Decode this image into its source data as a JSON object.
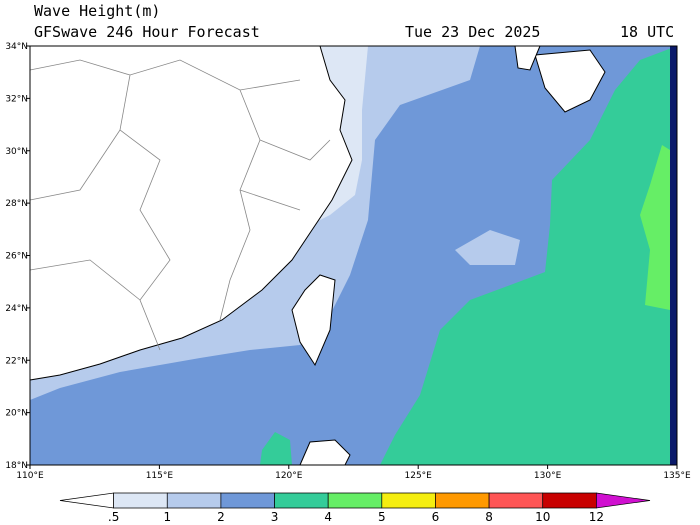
{
  "header": {
    "title": "Wave Height(m)",
    "subtitle": "GFSwave 246 Hour Forecast",
    "date": "Tue 23 Dec 2025",
    "time": "18 UTC"
  },
  "axes": {
    "lon_labels": [
      "110°E",
      "115°E",
      "120°E",
      "125°E",
      "130°E",
      "135°E"
    ],
    "lat_labels": [
      "34°N",
      "32°N",
      "30°N",
      "28°N",
      "26°N",
      "24°N",
      "22°N",
      "20°N",
      "18°N"
    ]
  },
  "colorbar": {
    "colors": [
      "#ffffff",
      "#dde7f5",
      "#b6cbec",
      "#6f98d8",
      "#34cc99",
      "#66ee66",
      "#f5ee10",
      "#ff9900",
      "#ff5555",
      "#c80000",
      "#d010d0"
    ],
    "labels": [
      ".5",
      "1",
      "2",
      "3",
      "4",
      "5",
      "6",
      "8",
      "10",
      "12"
    ]
  }
}
